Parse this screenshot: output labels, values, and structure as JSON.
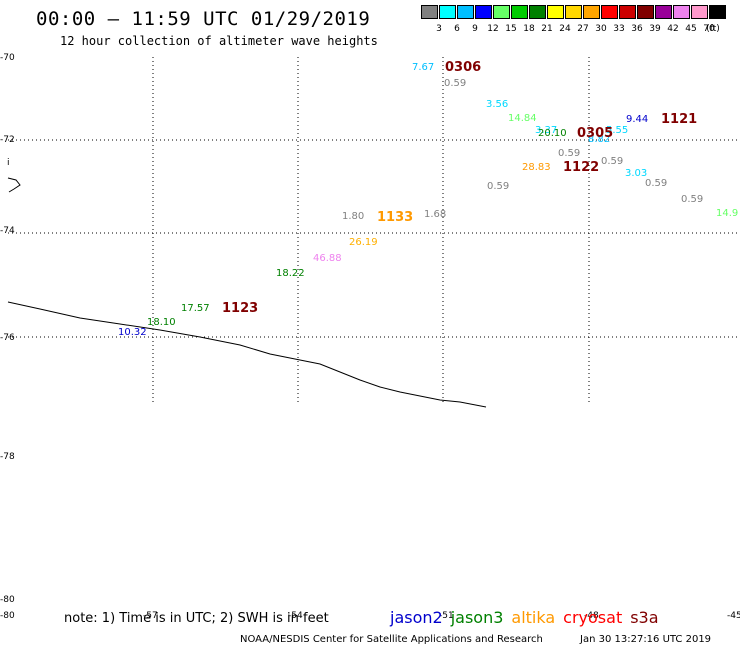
{
  "header": {
    "title": "00:00 – 11:59 UTC 01/29/2019",
    "subtitle": "12 hour collection of altimeter wave heights"
  },
  "legend": {
    "units": "(ft)",
    "items": [
      {
        "label": "3",
        "color": "#808080"
      },
      {
        "label": "6",
        "color": "#00ffff"
      },
      {
        "label": "9",
        "color": "#00bfff"
      },
      {
        "label": "12",
        "color": "#0000ff"
      },
      {
        "label": "15",
        "color": "#66ff66"
      },
      {
        "label": "18",
        "color": "#00cc00"
      },
      {
        "label": "21",
        "color": "#008000"
      },
      {
        "label": "24",
        "color": "#ffff00"
      },
      {
        "label": "27",
        "color": "#ffd700"
      },
      {
        "label": "30",
        "color": "#ffa500"
      },
      {
        "label": "33",
        "color": "#ff0000"
      },
      {
        "label": "36",
        "color": "#cc0000"
      },
      {
        "label": "39",
        "color": "#800000"
      },
      {
        "label": "42",
        "color": "#990099"
      },
      {
        "label": "45",
        "color": "#ee82ee"
      },
      {
        "label": "70",
        "color": "#ff99cc"
      },
      {
        "label": "",
        "color": "#000000"
      }
    ]
  },
  "map": {
    "lat_labels": [
      "-70",
      "-72",
      "-74",
      "-76",
      "-78",
      "-80",
      "-80"
    ],
    "lon_labels": [
      "-57",
      "-54",
      "-51",
      "-48",
      "-45"
    ],
    "coast_marker": "i",
    "wave_labels": [
      {
        "text": "7.67",
        "color": "#00bfff"
      },
      {
        "text": "0.59",
        "color": "#808080"
      },
      {
        "text": "3.56",
        "color": "#00d8ff"
      },
      {
        "text": "14.84",
        "color": "#66ff66"
      },
      {
        "text": "3.37",
        "color": "#00d8ff"
      },
      {
        "text": "20.10",
        "color": "#008000"
      },
      {
        "text": "8.82",
        "color": "#00bfff"
      },
      {
        "text": "5.55",
        "color": "#00d8ff"
      },
      {
        "text": "9.44",
        "color": "#0000cc"
      },
      {
        "text": "0.59",
        "color": "#808080"
      },
      {
        "text": "0.59",
        "color": "#808080"
      },
      {
        "text": "28.83",
        "color": "#ff9900"
      },
      {
        "text": "3.03",
        "color": "#00d8ff"
      },
      {
        "text": "0.59",
        "color": "#808080"
      },
      {
        "text": "0.59",
        "color": "#808080"
      },
      {
        "text": "0.59",
        "color": "#808080"
      },
      {
        "text": "14.9",
        "color": "#66ff66"
      },
      {
        "text": "1.80",
        "color": "#808080"
      },
      {
        "text": "1.68",
        "color": "#808080"
      },
      {
        "text": "26.19",
        "color": "#ffb000"
      },
      {
        "text": "46.88",
        "color": "#ee82ee"
      },
      {
        "text": "18.22",
        "color": "#008000"
      },
      {
        "text": "17.57",
        "color": "#008000"
      },
      {
        "text": "18.10",
        "color": "#008000"
      },
      {
        "text": "10.32",
        "color": "#0000cc"
      }
    ],
    "time_labels": [
      {
        "text": "0306",
        "color": "#800000"
      },
      {
        "text": "0305",
        "color": "#800000"
      },
      {
        "text": "1121",
        "color": "#800000"
      },
      {
        "text": "1122",
        "color": "#800000"
      },
      {
        "text": "1133",
        "color": "#ff9900"
      },
      {
        "text": "1123",
        "color": "#800000"
      }
    ]
  },
  "footer": {
    "note": "note: 1) Time is in UTC; 2) SWH is in feet",
    "satellites": [
      {
        "name": "jason2",
        "color": "#0000cc"
      },
      {
        "name": "jason3",
        "color": "#008000"
      },
      {
        "name": "altika",
        "color": "#ff9900"
      },
      {
        "name": "cryosat",
        "color": "#ff0000"
      },
      {
        "name": "s3a",
        "color": "#800000"
      }
    ],
    "credit": "NOAA/NESDIS Center for Satellite Applications and Research",
    "timestamp": "Jan 30 13:27:16 UTC 2019"
  }
}
